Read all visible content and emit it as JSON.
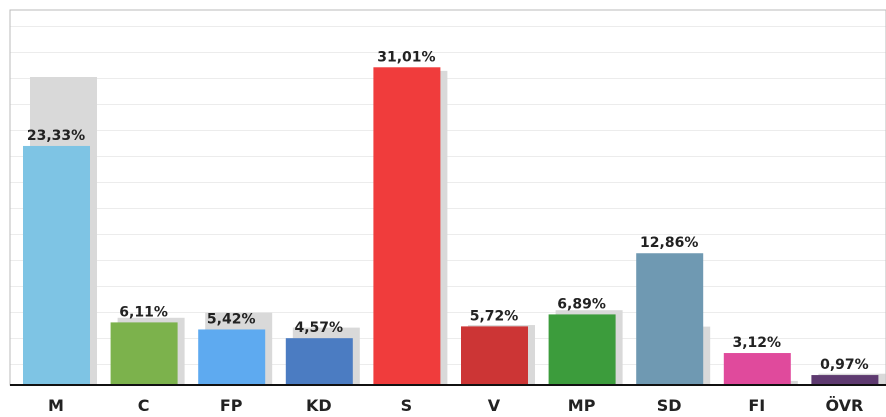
{
  "chart_data": {
    "type": "bar",
    "categories": [
      "M",
      "C",
      "FP",
      "KD",
      "S",
      "V",
      "MP",
      "SD",
      "FI",
      "ÖVR"
    ],
    "series": [
      {
        "color": "#d9d9d9",
        "values": [
          30.06,
          6.56,
          7.06,
          5.6,
          30.66,
          5.85,
          7.3,
          5.7,
          0.4,
          1.1
        ]
      },
      {
        "colors": [
          "#7ec4e4",
          "#7cb24c",
          "#5eaaf0",
          "#4b7cc2",
          "#f03c3c",
          "#cc3535",
          "#3c9c3c",
          "#6f99b2",
          "#e04a9c",
          "#5e3a70"
        ],
        "values": [
          23.33,
          6.11,
          5.42,
          4.57,
          31.01,
          5.72,
          6.89,
          12.86,
          3.12,
          0.97
        ],
        "value_labels": [
          "23,33%",
          "6,11%",
          "5,42%",
          "4,57%",
          "31,01%",
          "5,72%",
          "6,89%",
          "12,86%",
          "3,12%",
          "0,97%"
        ]
      }
    ],
    "ylim": [
      0,
      36.6
    ]
  }
}
